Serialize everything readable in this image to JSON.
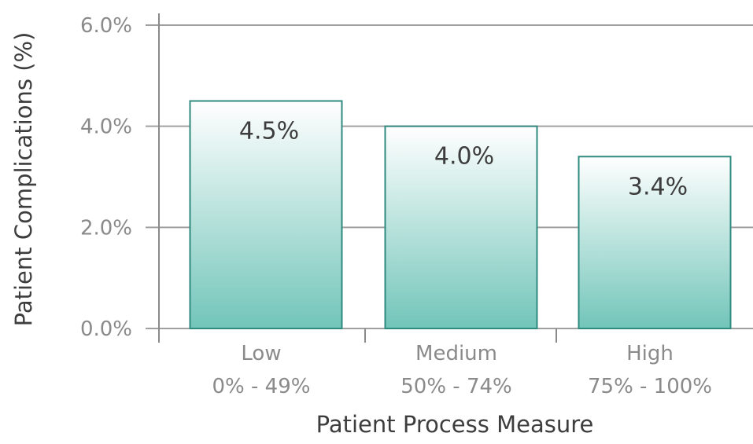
{
  "chart_data": {
    "type": "bar",
    "title": "",
    "xlabel": "Patient Process Measure",
    "ylabel": "Patient Complications (%)",
    "categories": [
      {
        "name": "Low",
        "range": "0% - 49%"
      },
      {
        "name": "Medium",
        "range": "50% - 74%"
      },
      {
        "name": "High",
        "range": "75% - 100%"
      }
    ],
    "values": [
      4.5,
      4.0,
      3.4
    ],
    "data_labels": [
      "4.5%",
      "4.0%",
      "3.4%"
    ],
    "ylim": [
      0,
      6
    ],
    "yticks": [
      0,
      2,
      4,
      6
    ],
    "ytick_labels": [
      "0.0%",
      "2.0%",
      "4.0%",
      "6.0%"
    ],
    "grid": true,
    "legend": "none",
    "colors": {
      "bar_top": "#ffffff",
      "bar_bottom": "#72c5b9",
      "bar_stroke": "#2f8a7f",
      "gridline": "#a0a0a0",
      "axis": "#8a8a8a"
    }
  }
}
